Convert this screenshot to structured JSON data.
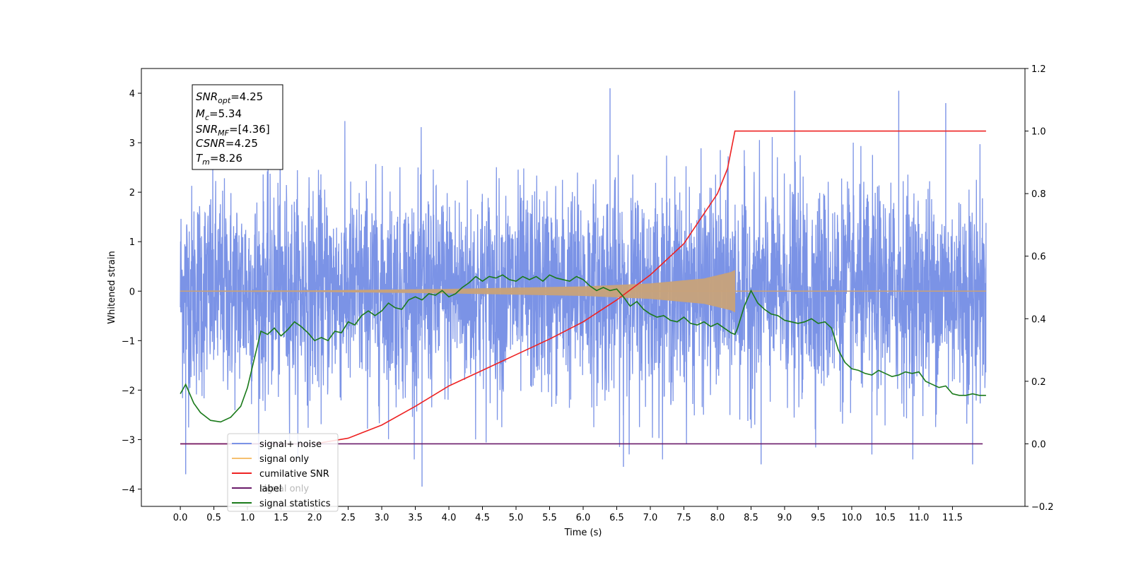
{
  "chart_data": {
    "type": "line",
    "xlabel": "Time (s)",
    "ylabel": "Whitened strain",
    "xlim": [
      -0.58,
      12.58
    ],
    "ylim": [
      -4.35,
      4.5
    ],
    "y2lim": [
      -0.2,
      1.2
    ],
    "x_ticks": [
      "0.0",
      "0.5",
      "1.0",
      "1.5",
      "2.0",
      "2.5",
      "3.0",
      "3.5",
      "4.0",
      "4.5",
      "5.0",
      "5.5",
      "6.0",
      "6.5",
      "7.0",
      "7.5",
      "8.0",
      "8.5",
      "9.0",
      "9.5",
      "10.0",
      "10.5",
      "11.0",
      "11.5"
    ],
    "y_ticks": [
      "-4",
      "-3",
      "-2",
      "-1",
      "0",
      "1",
      "2",
      "3",
      "4"
    ],
    "y2_ticks": [
      "-0.2",
      "0.0",
      "0.2",
      "0.4",
      "0.6",
      "0.8",
      "1.0",
      "1.2"
    ],
    "grid": false,
    "legend_position": "lower-left",
    "info_box": {
      "snr_opt": {
        "base": "SNR",
        "sub": "opt",
        "value": "=4.25"
      },
      "mc": {
        "base": "M",
        "sub": "c",
        "value": "=5.34"
      },
      "snr_mf": {
        "base": "SNR",
        "sub": "MF",
        "value": "=[4.36]"
      },
      "csnr": {
        "base": "CSNR",
        "sub": "",
        "value": "=4.25"
      },
      "tm": {
        "base": "T",
        "sub": "m",
        "value": "=8.26"
      }
    },
    "series": [
      {
        "name": "signal+ noise",
        "axis": "left",
        "color": "#7b93e6",
        "x_start": 0.0,
        "x_end": 12.0,
        "num_points": 3600,
        "amplitude_std": 1.0,
        "spike_peaks": [
          [
            0.08,
            -3.7
          ],
          [
            3.6,
            -3.95
          ],
          [
            6.6,
            -3.55
          ],
          [
            8.65,
            -3.5
          ],
          [
            10.3,
            -3.3
          ],
          [
            11.8,
            -3.5
          ],
          [
            6.4,
            4.1
          ],
          [
            9.15,
            4.05
          ],
          [
            10.7,
            4.05
          ],
          [
            11.4,
            3.8
          ]
        ]
      },
      {
        "name": "signal only",
        "axis": "left",
        "color": "#c8a27a",
        "chirp_end": 8.26,
        "envelope": [
          [
            0,
            0.005
          ],
          [
            2.0,
            0.01
          ],
          [
            4.0,
            0.04
          ],
          [
            6.0,
            0.09
          ],
          [
            7.0,
            0.15
          ],
          [
            7.8,
            0.25
          ],
          [
            8.2,
            0.38
          ],
          [
            8.26,
            0.42
          ]
        ]
      },
      {
        "name": "cumilative SNR",
        "axis": "right",
        "color": "#ee2222",
        "points": [
          [
            0.0,
            0.0
          ],
          [
            2.0,
            0.0
          ],
          [
            2.5,
            0.018
          ],
          [
            3.0,
            0.06
          ],
          [
            3.5,
            0.12
          ],
          [
            4.0,
            0.185
          ],
          [
            4.5,
            0.235
          ],
          [
            5.0,
            0.285
          ],
          [
            5.5,
            0.335
          ],
          [
            6.0,
            0.39
          ],
          [
            6.5,
            0.46
          ],
          [
            7.0,
            0.54
          ],
          [
            7.5,
            0.64
          ],
          [
            8.0,
            0.8
          ],
          [
            8.15,
            0.88
          ],
          [
            8.26,
            1.0
          ],
          [
            12.0,
            1.0
          ]
        ]
      },
      {
        "name": "label",
        "axis": "right",
        "color": "#6a1b6a",
        "points": [
          [
            0.0,
            0.0
          ],
          [
            11.95,
            0.0
          ]
        ]
      },
      {
        "name": "signal statistics",
        "axis": "right",
        "color": "#1a7a1a",
        "points": [
          [
            0.0,
            0.16
          ],
          [
            0.08,
            0.19
          ],
          [
            0.2,
            0.13
          ],
          [
            0.3,
            0.1
          ],
          [
            0.45,
            0.075
          ],
          [
            0.6,
            0.07
          ],
          [
            0.75,
            0.085
          ],
          [
            0.9,
            0.12
          ],
          [
            1.0,
            0.18
          ],
          [
            1.1,
            0.27
          ],
          [
            1.2,
            0.36
          ],
          [
            1.3,
            0.35
          ],
          [
            1.4,
            0.37
          ],
          [
            1.5,
            0.345
          ],
          [
            1.6,
            0.365
          ],
          [
            1.7,
            0.39
          ],
          [
            1.8,
            0.375
          ],
          [
            1.9,
            0.355
          ],
          [
            2.0,
            0.33
          ],
          [
            2.1,
            0.34
          ],
          [
            2.2,
            0.33
          ],
          [
            2.3,
            0.36
          ],
          [
            2.4,
            0.355
          ],
          [
            2.5,
            0.39
          ],
          [
            2.6,
            0.38
          ],
          [
            2.7,
            0.41
          ],
          [
            2.8,
            0.425
          ],
          [
            2.9,
            0.41
          ],
          [
            3.0,
            0.425
          ],
          [
            3.1,
            0.45
          ],
          [
            3.2,
            0.435
          ],
          [
            3.3,
            0.43
          ],
          [
            3.4,
            0.46
          ],
          [
            3.5,
            0.47
          ],
          [
            3.6,
            0.46
          ],
          [
            3.7,
            0.48
          ],
          [
            3.8,
            0.475
          ],
          [
            3.9,
            0.49
          ],
          [
            4.0,
            0.47
          ],
          [
            4.1,
            0.48
          ],
          [
            4.2,
            0.5
          ],
          [
            4.3,
            0.515
          ],
          [
            4.4,
            0.535
          ],
          [
            4.5,
            0.52
          ],
          [
            4.6,
            0.535
          ],
          [
            4.7,
            0.53
          ],
          [
            4.8,
            0.54
          ],
          [
            4.9,
            0.525
          ],
          [
            5.0,
            0.52
          ],
          [
            5.1,
            0.535
          ],
          [
            5.2,
            0.525
          ],
          [
            5.3,
            0.535
          ],
          [
            5.4,
            0.52
          ],
          [
            5.5,
            0.54
          ],
          [
            5.6,
            0.53
          ],
          [
            5.7,
            0.525
          ],
          [
            5.8,
            0.52
          ],
          [
            5.9,
            0.535
          ],
          [
            6.0,
            0.525
          ],
          [
            6.1,
            0.505
          ],
          [
            6.2,
            0.49
          ],
          [
            6.3,
            0.5
          ],
          [
            6.4,
            0.49
          ],
          [
            6.5,
            0.495
          ],
          [
            6.6,
            0.47
          ],
          [
            6.7,
            0.44
          ],
          [
            6.8,
            0.455
          ],
          [
            6.9,
            0.43
          ],
          [
            7.0,
            0.415
          ],
          [
            7.1,
            0.405
          ],
          [
            7.2,
            0.41
          ],
          [
            7.3,
            0.395
          ],
          [
            7.4,
            0.39
          ],
          [
            7.5,
            0.405
          ],
          [
            7.6,
            0.385
          ],
          [
            7.7,
            0.38
          ],
          [
            7.8,
            0.39
          ],
          [
            7.9,
            0.375
          ],
          [
            8.0,
            0.385
          ],
          [
            8.1,
            0.37
          ],
          [
            8.2,
            0.355
          ],
          [
            8.26,
            0.35
          ],
          [
            8.3,
            0.37
          ],
          [
            8.4,
            0.44
          ],
          [
            8.5,
            0.49
          ],
          [
            8.6,
            0.45
          ],
          [
            8.7,
            0.43
          ],
          [
            8.8,
            0.415
          ],
          [
            8.9,
            0.41
          ],
          [
            9.0,
            0.395
          ],
          [
            9.1,
            0.39
          ],
          [
            9.2,
            0.385
          ],
          [
            9.3,
            0.39
          ],
          [
            9.4,
            0.4
          ],
          [
            9.5,
            0.385
          ],
          [
            9.6,
            0.39
          ],
          [
            9.7,
            0.37
          ],
          [
            9.8,
            0.3
          ],
          [
            9.9,
            0.26
          ],
          [
            10.0,
            0.24
          ],
          [
            10.1,
            0.235
          ],
          [
            10.2,
            0.225
          ],
          [
            10.3,
            0.22
          ],
          [
            10.4,
            0.235
          ],
          [
            10.5,
            0.225
          ],
          [
            10.6,
            0.215
          ],
          [
            10.7,
            0.22
          ],
          [
            10.8,
            0.23
          ],
          [
            10.9,
            0.225
          ],
          [
            11.0,
            0.23
          ],
          [
            11.1,
            0.2
          ],
          [
            11.2,
            0.19
          ],
          [
            11.3,
            0.18
          ],
          [
            11.4,
            0.185
          ],
          [
            11.5,
            0.16
          ],
          [
            11.6,
            0.155
          ],
          [
            11.7,
            0.155
          ],
          [
            11.8,
            0.16
          ],
          [
            11.9,
            0.155
          ],
          [
            12.0,
            0.155
          ]
        ]
      }
    ],
    "legend_ghost_text": "signal only"
  }
}
